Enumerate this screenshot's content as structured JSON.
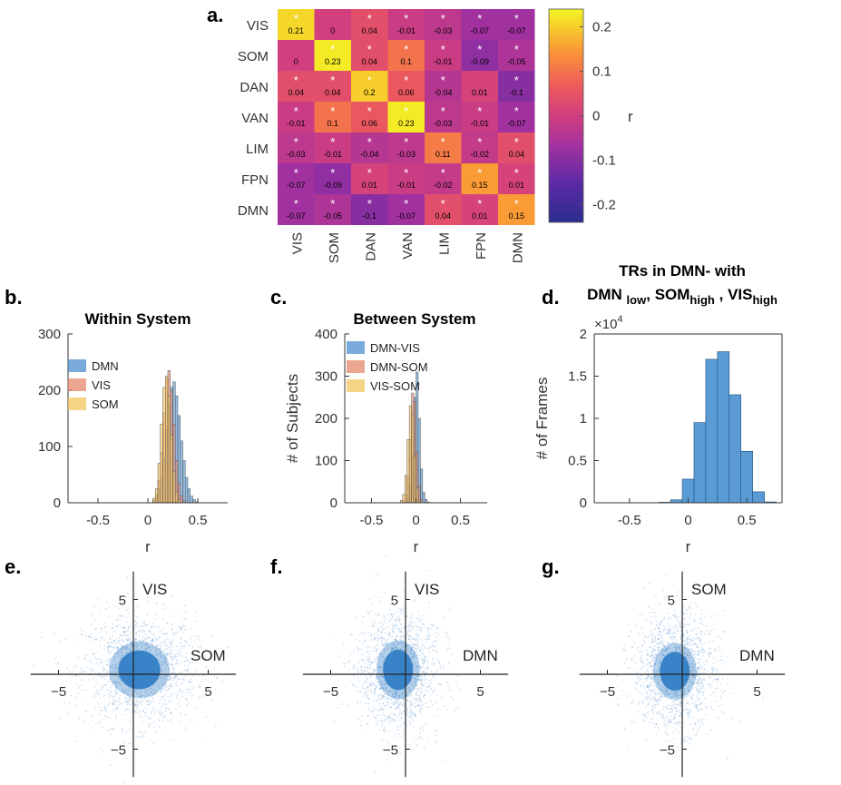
{
  "chart_data": [
    {
      "panel": "a.",
      "type": "heatmap",
      "rows": [
        "VIS",
        "SOM",
        "DAN",
        "VAN",
        "LIM",
        "FPN",
        "DMN"
      ],
      "cols": [
        "VIS",
        "SOM",
        "DAN",
        "VAN",
        "LIM",
        "FPN",
        "DMN"
      ],
      "values": [
        [
          0.21,
          0,
          0.04,
          -0.01,
          -0.03,
          -0.07,
          -0.07
        ],
        [
          0,
          0.23,
          0.04,
          0.1,
          -0.01,
          -0.09,
          -0.05
        ],
        [
          0.04,
          0.04,
          0.2,
          0.06,
          -0.04,
          0.01,
          -0.1
        ],
        [
          -0.01,
          0.1,
          0.06,
          0.23,
          -0.03,
          -0.01,
          -0.07
        ],
        [
          -0.03,
          -0.01,
          -0.04,
          -0.03,
          0.11,
          -0.02,
          0.04
        ],
        [
          -0.07,
          -0.09,
          0.01,
          -0.01,
          -0.02,
          0.15,
          0.01
        ],
        [
          -0.07,
          -0.05,
          -0.1,
          -0.07,
          0.04,
          0.01,
          0.15
        ]
      ],
      "labels": [
        [
          "0.21",
          "0",
          "0.04",
          "-0.01",
          "-0.03",
          "-0.07",
          "-0.07"
        ],
        [
          "0",
          "0.23",
          "0.04",
          "0.1",
          "-0.01",
          "-0.09",
          "-0.05"
        ],
        [
          "0.04",
          "0.04",
          "0.2",
          "0.06",
          "-0.04",
          "0.01",
          "-0.1"
        ],
        [
          "-0.01",
          "0.1",
          "0.06",
          "0.23",
          "-0.03",
          "-0.01",
          "-0.07"
        ],
        [
          "-0.03",
          "-0.01",
          "-0.04",
          "-0.03",
          "0.11",
          "-0.02",
          "0.04"
        ],
        [
          "-0.07",
          "-0.09",
          "0.01",
          "-0.01",
          "-0.02",
          "0.15",
          "0.01"
        ],
        [
          "-0.07",
          "-0.05",
          "-0.1",
          "-0.07",
          "0.04",
          "0.01",
          "0.15"
        ]
      ],
      "significant": [
        [
          1,
          0,
          1,
          1,
          1,
          1,
          1
        ],
        [
          0,
          1,
          1,
          1,
          1,
          1,
          1
        ],
        [
          1,
          1,
          1,
          1,
          1,
          0,
          1
        ],
        [
          1,
          1,
          1,
          1,
          1,
          1,
          1
        ],
        [
          1,
          1,
          1,
          1,
          1,
          1,
          1
        ],
        [
          1,
          1,
          1,
          1,
          1,
          1,
          1
        ],
        [
          1,
          1,
          1,
          1,
          1,
          1,
          1
        ]
      ],
      "star_symbol": "*",
      "colorbar": {
        "label": "r",
        "range": [
          -0.24,
          0.24
        ],
        "ticks": [
          0.2,
          0.1,
          0,
          -0.1,
          -0.2
        ],
        "tick_labels": [
          "0.2",
          "0.1",
          "0",
          "-0.1",
          "-0.2"
        ]
      }
    },
    {
      "panel": "b.",
      "type": "histogram",
      "title": "Within System",
      "xlabel": "r",
      "ylabel": "",
      "xlim": [
        -0.8,
        0.8
      ],
      "ylim": [
        0,
        300
      ],
      "xticks": [
        -0.5,
        0,
        0.5
      ],
      "xtick_labels": [
        "-0.5",
        "0",
        "0.5"
      ],
      "yticks": [
        0,
        100,
        200,
        300
      ],
      "ytick_labels": [
        "0",
        "100",
        "200",
        "300"
      ],
      "bin_width": 0.025,
      "series": [
        {
          "name": "DMN",
          "color": "#4d8fcd",
          "bins_start": [
            0.05,
            0.075,
            0.1,
            0.125,
            0.15,
            0.175,
            0.2,
            0.225,
            0.25,
            0.275,
            0.3,
            0.325,
            0.35,
            0.375,
            0.4,
            0.425,
            0.45,
            0.475
          ],
          "counts": [
            4,
            10,
            25,
            45,
            80,
            130,
            175,
            205,
            215,
            190,
            155,
            110,
            75,
            45,
            25,
            12,
            6,
            2
          ]
        },
        {
          "name": "VIS",
          "color": "#e6876a",
          "bins_start": [
            0.05,
            0.075,
            0.1,
            0.125,
            0.15,
            0.175,
            0.2,
            0.225,
            0.25,
            0.275,
            0.3,
            0.325,
            0.35
          ],
          "counts": [
            5,
            15,
            40,
            90,
            160,
            220,
            235,
            200,
            140,
            75,
            35,
            12,
            4
          ]
        },
        {
          "name": "SOM",
          "color": "#f2c55c",
          "bins_start": [
            0.05,
            0.075,
            0.1,
            0.125,
            0.15,
            0.175,
            0.2,
            0.225,
            0.25,
            0.275,
            0.3
          ],
          "counts": [
            8,
            25,
            70,
            140,
            205,
            225,
            190,
            120,
            55,
            20,
            6
          ]
        }
      ]
    },
    {
      "panel": "c.",
      "type": "histogram",
      "title": "Between System",
      "xlabel": "r",
      "ylabel": "# of Subjects",
      "xlim": [
        -0.8,
        0.8
      ],
      "ylim": [
        0,
        400
      ],
      "xticks": [
        -0.5,
        0,
        0.5
      ],
      "xtick_labels": [
        "-0.5",
        "0",
        "0.5"
      ],
      "yticks": [
        0,
        100,
        200,
        300,
        400
      ],
      "ytick_labels": [
        "0",
        "100",
        "200",
        "300",
        "400"
      ],
      "bin_width": 0.025,
      "series": [
        {
          "name": "DMN-VIS",
          "color": "#4d8fcd",
          "bins_start": [
            -0.125,
            -0.1,
            -0.075,
            -0.05,
            -0.025,
            0,
            0.025,
            0.05,
            0.075,
            0.1,
            0.125
          ],
          "counts": [
            4,
            12,
            40,
            120,
            250,
            310,
            200,
            80,
            25,
            8,
            2
          ]
        },
        {
          "name": "DMN-SOM",
          "color": "#e6876a",
          "bins_start": [
            -0.15,
            -0.125,
            -0.1,
            -0.075,
            -0.05,
            -0.025,
            0,
            0.025,
            0.05
          ],
          "counts": [
            5,
            18,
            60,
            150,
            260,
            240,
            120,
            40,
            8
          ]
        },
        {
          "name": "VIS-SOM",
          "color": "#f2c55c",
          "bins_start": [
            -0.175,
            -0.15,
            -0.125,
            -0.1,
            -0.075,
            -0.05,
            -0.025,
            0,
            0.025
          ],
          "counts": [
            6,
            20,
            65,
            150,
            230,
            210,
            110,
            35,
            6
          ]
        }
      ]
    },
    {
      "panel": "d.",
      "type": "histogram",
      "title_line1": "TRs in DMN- with",
      "title_line2": {
        "a": "DMN",
        "a_sub": "low",
        "b": "SOM",
        "b_sub": "high",
        "c": "VIS",
        "c_sub": "high",
        "sep": ",",
        "gap": " "
      },
      "xlabel": "r",
      "ylabel": "# of Frames",
      "xlim": [
        -0.8,
        0.8
      ],
      "ylim": [
        0,
        20000
      ],
      "exponent_base": "×10",
      "exponent_power": "4",
      "xticks": [
        -0.5,
        0,
        0.5
      ],
      "xtick_labels": [
        "-0.5",
        "0",
        "0.5"
      ],
      "yticks": [
        0,
        5000,
        10000,
        15000,
        20000
      ],
      "ytick_labels": [
        "0",
        "0.5",
        "1",
        "1.5",
        "2"
      ],
      "bin_width": 0.1,
      "series": [
        {
          "name": "DMN",
          "color": "#5b9bd5",
          "bins_start": [
            -0.35,
            -0.25,
            -0.15,
            -0.05,
            0.05,
            0.15,
            0.25,
            0.35,
            0.45,
            0.55,
            0.65
          ],
          "counts": [
            20,
            60,
            350,
            2800,
            9500,
            17000,
            17900,
            12800,
            6100,
            1300,
            100
          ]
        }
      ]
    },
    {
      "panel": "e.",
      "type": "scatter",
      "x_label": "SOM",
      "y_label": "VIS",
      "xlim": [
        -7,
        7
      ],
      "ylim": [
        -7,
        7
      ],
      "ticks": [
        -5,
        5
      ],
      "tick_labels": [
        "−5",
        "5"
      ],
      "cloud": {
        "center": [
          0.4,
          0.3
        ],
        "spread": [
          1.5,
          1.5
        ],
        "core": [
          1.4,
          1.3
        ],
        "color": "#2e7bc4"
      }
    },
    {
      "panel": "f.",
      "type": "scatter",
      "x_label": "DMN",
      "y_label": "VIS",
      "xlim": [
        -7,
        7
      ],
      "ylim": [
        -7,
        7
      ],
      "ticks": [
        -5,
        5
      ],
      "tick_labels": [
        "−5",
        "5"
      ],
      "cloud": {
        "center": [
          -0.5,
          0.3
        ],
        "spread": [
          1.1,
          1.6
        ],
        "core": [
          1.0,
          1.35
        ],
        "color": "#2e7bc4"
      }
    },
    {
      "panel": "g.",
      "type": "scatter",
      "x_label": "DMN",
      "y_label": "SOM",
      "xlim": [
        -7,
        7
      ],
      "ylim": [
        -7,
        7
      ],
      "ticks": [
        -5,
        5
      ],
      "tick_labels": [
        "−5",
        "5"
      ],
      "cloud": {
        "center": [
          -0.5,
          0.2
        ],
        "spread": [
          1.1,
          1.55
        ],
        "core": [
          1.0,
          1.3
        ],
        "color": "#2e7bc4"
      }
    }
  ]
}
